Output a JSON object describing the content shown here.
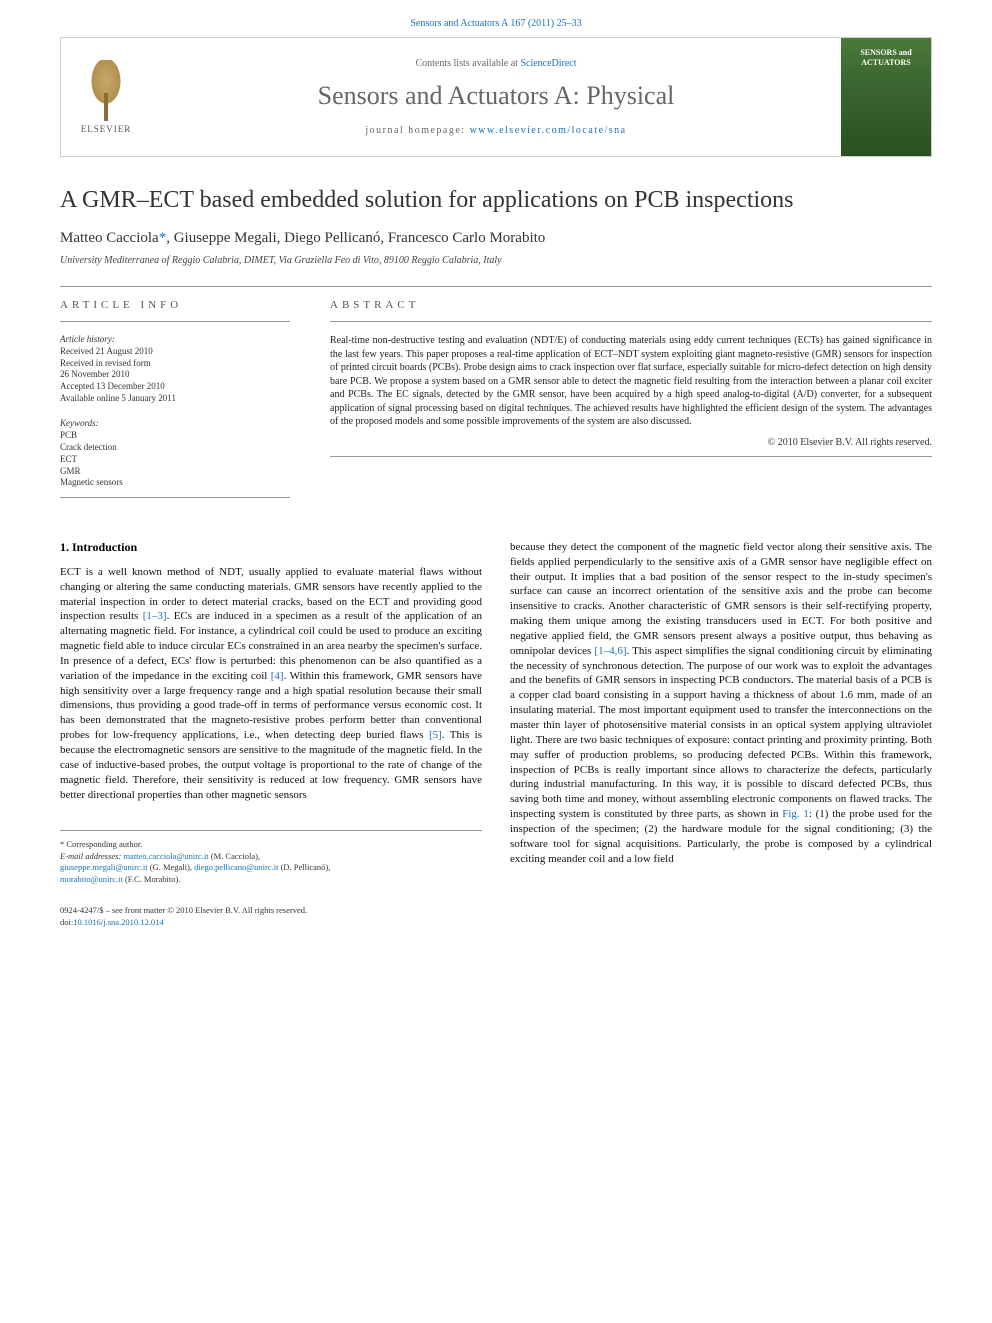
{
  "header": {
    "citation_pre": "Sensors and Actuators A 167 (2011) 25–33",
    "citation_link": "Sensors and Actuators A 167 (2011) 25–33"
  },
  "banner": {
    "elsevier": "ELSEVIER",
    "contents_pre": "Contents lists available at ",
    "contents_link": "ScienceDirect",
    "journal_name": "Sensors and Actuators A: Physical",
    "homepage_pre": "journal homepage: ",
    "homepage_link": "www.elsevier.com/locate/sna",
    "cover_title": "SENSORS and ACTUATORS"
  },
  "article": {
    "title": "A GMR–ECT based embedded solution for applications on PCB inspections",
    "authors_html": "Matteo Cacciola*, Giuseppe Megali, Diego Pellicanó, Francesco Carlo Morabito",
    "author1": "Matteo Cacciola",
    "corr_marker": "*",
    "author2": ", Giuseppe Megali, Diego Pellicanó, Francesco Carlo Morabito",
    "affiliation": "University Mediterranea of Reggio Calabria, DIMET, Via Graziella Feo di Vito, 89100 Reggio Calabria, Italy"
  },
  "info": {
    "article_info_heading": "ARTICLE INFO",
    "abstract_heading": "ABSTRACT",
    "history_heading": "Article history:",
    "history": [
      "Received 21 August 2010",
      "Received in revised form",
      "26 November 2010",
      "Accepted 13 December 2010",
      "Available online 5 January 2011"
    ],
    "keywords_heading": "Keywords:",
    "keywords": [
      "PCB",
      "Crack detection",
      "ECT",
      "GMR",
      "Magnetic sensors"
    ],
    "abstract": "Real-time non-destructive testing and evaluation (NDT/E) of conducting materials using eddy current techniques (ECTs) has gained significance in the last few years. This paper proposes a real-time application of ECT–NDT system exploiting giant magneto-resistive (GMR) sensors for inspection of printed circuit boards (PCBs). Probe design aims to crack inspection over flat surface, especially suitable for micro-defect detection on high density bare PCB. We propose a system based on a GMR sensor able to detect the magnetic field resulting from the interaction between a planar coil exciter and PCBs. The EC signals, detected by the GMR sensor, have been acquired by a high speed analog-to-digital (A/D) converter, for a subsequent application of signal processing based on digital techniques. The achieved results have highlighted the efficient design of the system. The advantages of the proposed models and some possible improvements of the system are also discussed.",
    "copyright": "© 2010 Elsevier B.V. All rights reserved."
  },
  "section1": {
    "heading": "1. Introduction",
    "p1_a": "ECT is a well known method of NDT, usually applied to evaluate material flaws without changing or altering the same conducting materials. GMR sensors have recently applied to the material inspection in order to detect material cracks, based on the ECT and providing good inspection results ",
    "ref1": "[1–3]",
    "p1_b": ". ECs are induced in a specimen as a result of the application of an alternating magnetic field. For instance, a cylindrical coil could be used to produce an exciting magnetic field able to induce circular ECs constrained in an area nearby the specimen's surface. In presence of a defect, ECs' flow is perturbed: this phenomenon can be also quantified as a variation of the impedance in the exciting coil ",
    "ref2": "[4]",
    "p1_c": ". Within this framework, GMR sensors have high sensitivity over a large frequency range and a high spatial resolution because their small dimensions, thus providing a good trade-off in terms of performance versus economic cost. It has been demonstrated that the magneto-resistive probes perform better than conventional probes for low-frequency applications, i.e., when detecting deep buried flaws ",
    "ref3": "[5]",
    "p1_d": ". This is because the electromagnetic sensors are sensitive to the magnitude of the magnetic field. In the case of inductive-based probes, the output voltage is proportional to the rate of change of the magnetic field. Therefore, their sensitivity is reduced at low frequency. GMR sensors have better directional properties than other magnetic sensors",
    "p2_a": "because they detect the component of the magnetic field vector along their sensitive axis. The fields applied perpendicularly to the sensitive axis of a GMR sensor have negligible effect on their output. It implies that a bad position of the sensor respect to the in-study specimen's surface can cause an incorrect orientation of the sensitive axis and the probe can become insensitive to cracks. Another characteristic of GMR sensors is their self-rectifying property, making them unique among the existing transducers used in ECT. For both positive and negative applied field, the GMR sensors present always a positive output, thus behaving as omnipolar devices ",
    "ref4": "[1–4,6]",
    "p2_b": ". This aspect simplifies the signal conditioning circuit by eliminating the necessity of synchronous detection. The purpose of our work was to exploit the advantages and the benefits of GMR sensors in inspecting PCB conductors. The material basis of a PCB is a copper clad board consisting in a support having a thickness of about 1.6 mm, made of an insulating material. The most important equipment used to transfer the interconnections on the master thin layer of photosensitive material consists in an optical system applying ultraviolet light. There are two basic techniques of exposure: contact printing and proximity printing. Both may suffer of production problems, so producing defected PCBs. Within this framework, inspection of PCBs is really important since allows to characterize the defects, particularly during industrial manufacturing. In this way, it is possible to discard defected PCBs, thus saving both time and money, without assembling electronic components on flawed tracks. The inspecting system is constituted by three parts, as shown in ",
    "figref": "Fig. 1",
    "p2_c": ": (1) the probe used for the inspection of the specimen; (2) the hardware module for the signal conditioning; (3) the software tool for signal acquisitions. Particularly, the probe is composed by a cylindrical exciting meander coil and a low field"
  },
  "footnotes": {
    "corr_label": "* Corresponding author.",
    "email_label": "E-mail addresses: ",
    "e1": "matteo.cacciola@unirc.it",
    "n1": " (M. Cacciola),",
    "e2": "giuseppe.megali@unirc.it",
    "n2": " (G. Megali), ",
    "e3": "diego.pellicano@unirc.it",
    "n3": " (D. Pellicanó),",
    "e4": "morabito@unirc.it",
    "n4": " (F.C. Morabito)."
  },
  "footer": {
    "issn": "0924-4247/$ – see front matter © 2010 Elsevier B.V. All rights reserved.",
    "doi_pre": "doi:",
    "doi": "10.1016/j.sna.2010.12.014"
  },
  "colors": {
    "link": "#1a6fb8",
    "text": "#111",
    "muted": "#555",
    "rule": "#999",
    "cover_bg": "#3a6530"
  }
}
